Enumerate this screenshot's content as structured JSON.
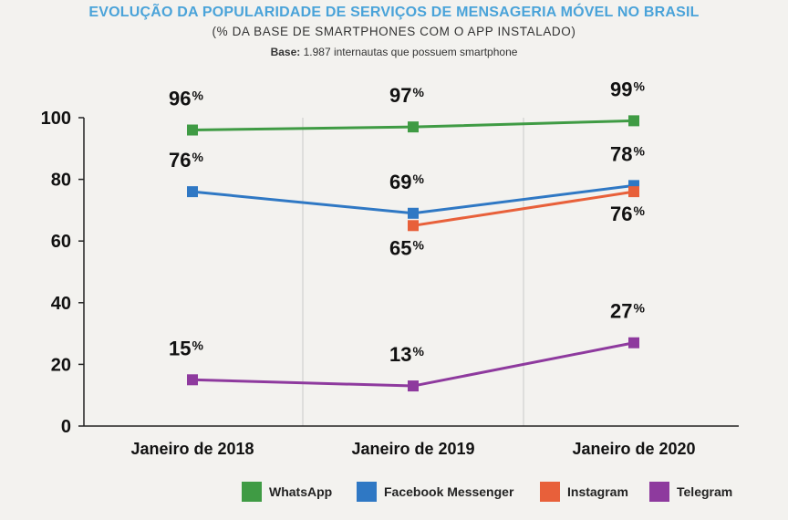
{
  "header": {
    "title": "EVOLUÇÃO DA POPULARIDADE DE SERVIÇOS DE MENSAGERIA MÓVEL NO BRASIL",
    "subtitle": "(% DA BASE DE SMARTPHONES COM O APP INSTALADO)",
    "base_label": "Base:",
    "base_text": " 1.987 internautas que possuem smartphone"
  },
  "chart_data": {
    "type": "line",
    "categories": [
      "Janeiro de 2018",
      "Janeiro de 2019",
      "Janeiro de 2020"
    ],
    "ylim": [
      0,
      100
    ],
    "yticks": [
      0,
      20,
      40,
      60,
      80,
      100
    ],
    "grid": "vertical",
    "legend_position": "bottom-right",
    "value_suffix": "%",
    "series": [
      {
        "name": "WhatsApp",
        "color": "#3f9b44",
        "values": [
          96,
          97,
          99
        ],
        "label_pos": [
          "above",
          "above",
          "above"
        ]
      },
      {
        "name": "Facebook Messenger",
        "color": "#2f78c4",
        "values": [
          76,
          69,
          78
        ],
        "label_pos": [
          "above",
          "above",
          "above"
        ]
      },
      {
        "name": "Instagram",
        "color": "#e8603a",
        "values": [
          null,
          65,
          76
        ],
        "label_pos": [
          null,
          "below",
          "below"
        ]
      },
      {
        "name": "Telegram",
        "color": "#8e3a9e",
        "values": [
          15,
          13,
          27
        ],
        "label_pos": [
          "above",
          "above",
          "above"
        ]
      }
    ]
  }
}
